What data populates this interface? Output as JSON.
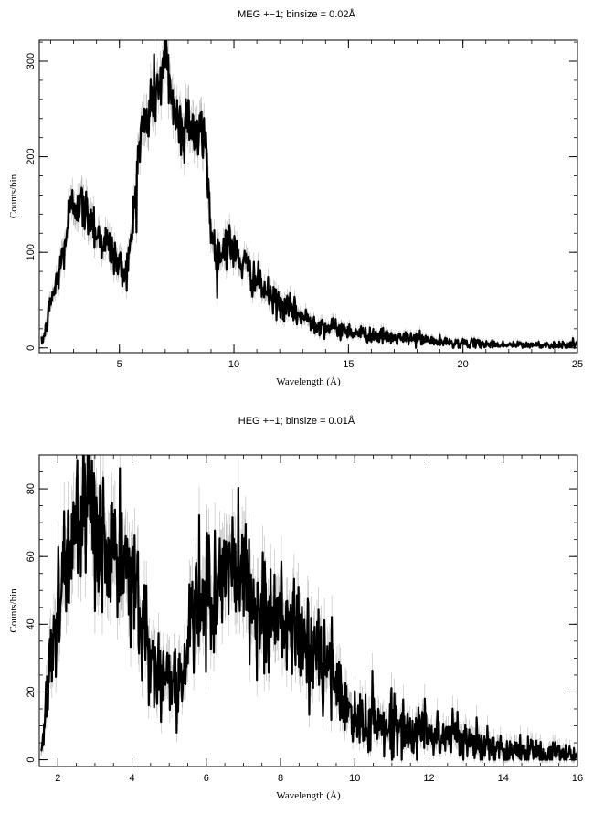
{
  "chart_data": [
    {
      "type": "line",
      "title": "MEG +−1; binsize = 0.02Å",
      "xlabel": "Wavelength (Å)",
      "ylabel": "Counts/bin",
      "xlim": [
        1.5,
        25
      ],
      "ylim": [
        -5,
        322
      ],
      "xticks": [
        5,
        10,
        15,
        20,
        25
      ],
      "yticks": [
        0,
        100,
        200,
        300
      ],
      "grid": false,
      "error_bars": true,
      "series": [
        {
          "x": [
            1.6,
            1.8,
            2.0,
            2.2,
            2.4,
            2.6,
            2.8,
            3.0,
            3.2,
            3.4,
            3.6,
            3.8,
            4.0,
            4.2,
            4.4,
            4.6,
            4.8,
            5.0,
            5.2,
            5.4,
            5.6,
            5.8,
            6.0,
            6.2,
            6.4,
            6.6,
            6.8,
            7.0,
            7.2,
            7.4,
            7.6,
            7.8,
            8.0,
            8.2,
            8.4,
            8.6,
            8.8,
            9.0,
            9.2,
            9.4,
            9.6,
            9.8,
            10.0,
            10.5,
            11.0,
            11.5,
            12.0,
            12.5,
            13.0,
            13.5,
            14.0,
            14.5,
            15.0,
            15.5,
            16.0,
            17.0,
            18.0,
            19.0,
            20.0,
            21.0,
            22.0,
            23.0,
            24.0,
            25.0
          ],
          "y": [
            5,
            20,
            50,
            62,
            85,
            105,
            140,
            150,
            155,
            145,
            140,
            138,
            120,
            115,
            110,
            105,
            95,
            85,
            80,
            90,
            130,
            200,
            230,
            235,
            260,
            270,
            280,
            300,
            280,
            250,
            235,
            225,
            250,
            230,
            215,
            225,
            210,
            120,
            100,
            95,
            110,
            110,
            100,
            85,
            70,
            55,
            45,
            40,
            32,
            27,
            22,
            20,
            18,
            15,
            14,
            10,
            10,
            6,
            5,
            4,
            3,
            3,
            3,
            4
          ]
        }
      ]
    },
    {
      "type": "line",
      "title": "HEG +−1; binsize = 0.01Å",
      "xlabel": "Wavelength (Å)",
      "ylabel": "Counts/bin",
      "xlim": [
        1.5,
        16
      ],
      "ylim": [
        -2,
        90
      ],
      "xticks": [
        2,
        4,
        6,
        8,
        10,
        12,
        14,
        16
      ],
      "yticks": [
        0,
        20,
        40,
        60,
        80
      ],
      "grid": false,
      "error_bars": true,
      "series": [
        {
          "x": [
            1.55,
            1.65,
            1.8,
            2.0,
            2.2,
            2.4,
            2.6,
            2.8,
            3.0,
            3.2,
            3.4,
            3.6,
            3.8,
            4.0,
            4.2,
            4.4,
            4.6,
            4.8,
            5.0,
            5.2,
            5.4,
            5.6,
            5.8,
            6.0,
            6.2,
            6.4,
            6.6,
            6.8,
            7.0,
            7.2,
            7.4,
            7.6,
            7.8,
            8.0,
            8.2,
            8.4,
            8.6,
            8.8,
            9.0,
            9.2,
            9.4,
            9.6,
            9.8,
            10.0,
            10.5,
            11.0,
            11.5,
            12.0,
            12.5,
            13.0,
            13.5,
            14.0,
            14.5,
            15.0,
            15.5,
            16.0
          ],
          "y": [
            2,
            12,
            32,
            45,
            58,
            65,
            68,
            70,
            68,
            65,
            62,
            57,
            55,
            52,
            48,
            35,
            27,
            24,
            25,
            23,
            27,
            40,
            45,
            48,
            50,
            52,
            55,
            57,
            58,
            47,
            45,
            43,
            40,
            42,
            40,
            37,
            35,
            32,
            30,
            28,
            25,
            20,
            14,
            12,
            11,
            10,
            9,
            8,
            7,
            6,
            4,
            3,
            3,
            2,
            2,
            1
          ]
        }
      ]
    }
  ]
}
